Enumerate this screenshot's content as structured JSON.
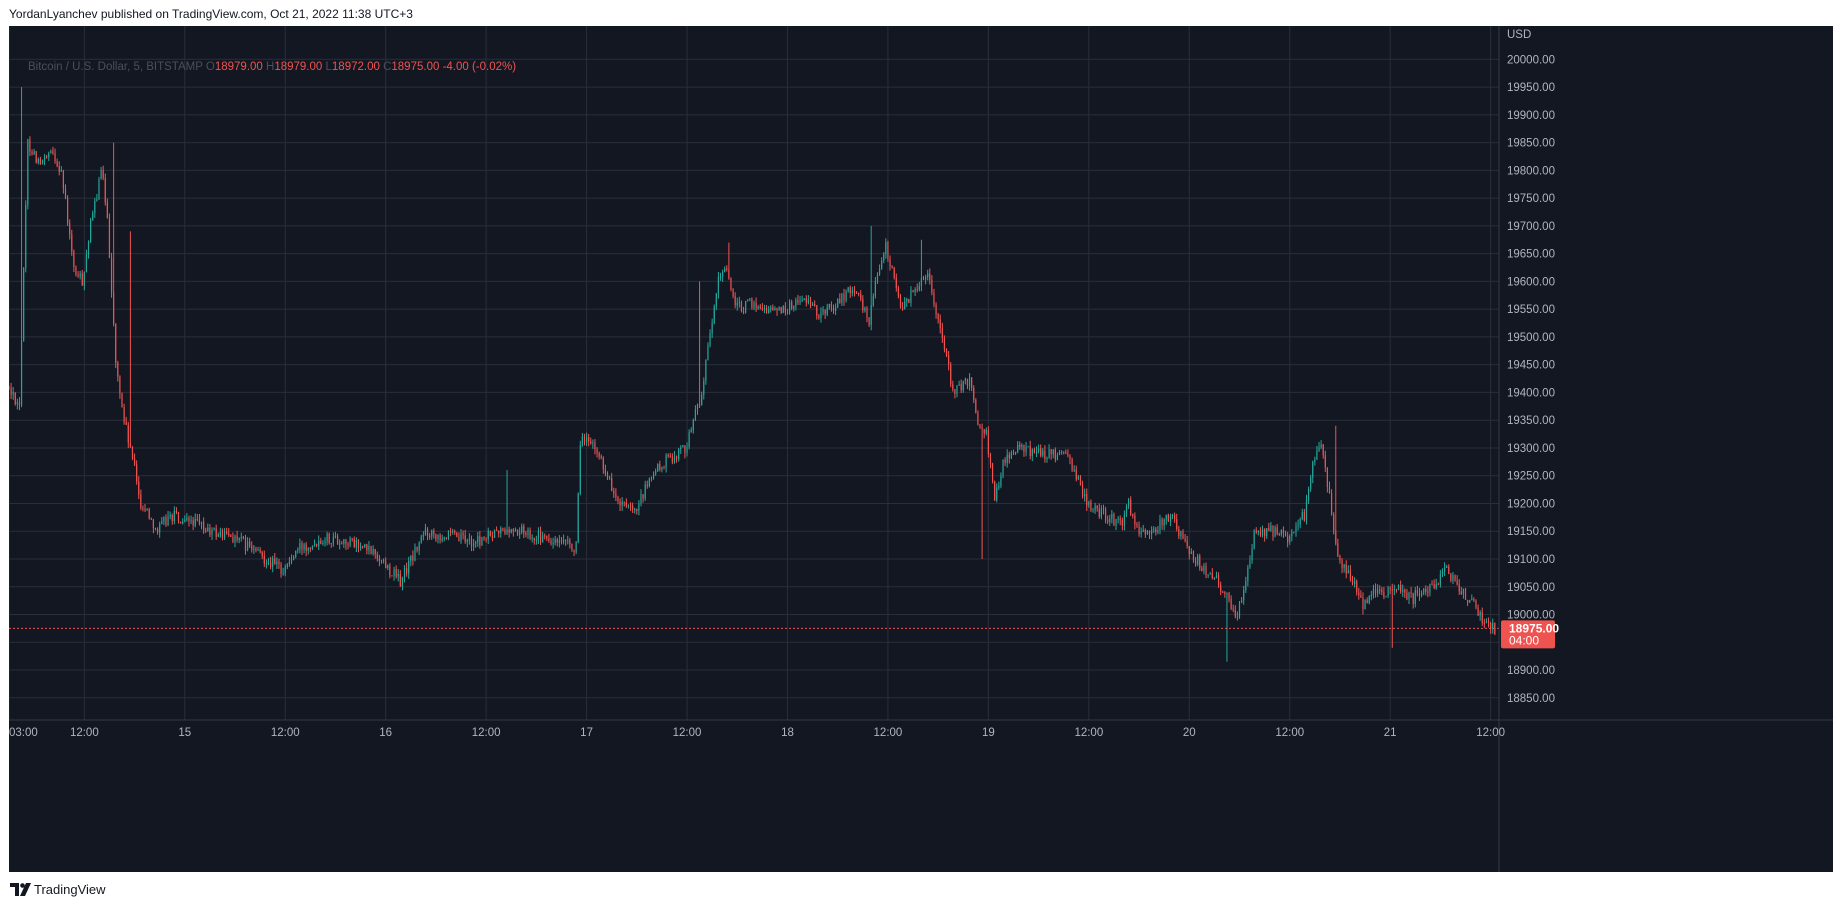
{
  "header": {
    "author": "YordanLyanchev",
    "published_text": "YordanLyanchev published on TradingView.com, Oct 21, 2022 11:38 UTC+3"
  },
  "legend": {
    "symbol": "Bitcoin / U.S. Dollar, 5, BITSTAMP",
    "o_label": "O",
    "o_value": "18979.00",
    "h_label": "H",
    "h_value": "18979.00",
    "l_label": "L",
    "l_value": "18972.00",
    "c_label": "C",
    "c_value": "18975.00",
    "change": "-4.00 (-0.02%)"
  },
  "footer": {
    "brand": "TradingView"
  },
  "colors": {
    "background": "#131722",
    "grid": "#2a2e39",
    "up": "#26a69a",
    "down": "#ef5350",
    "last_price": "#ef5350"
  },
  "chart_data": {
    "type": "candlestick",
    "symbol": "Bitcoin / U.S. Dollar",
    "interval": "5",
    "exchange": "BITSTAMP",
    "currency_label": "USD",
    "y_ticks": [
      18850,
      18900,
      18950,
      19000,
      19050,
      19100,
      19150,
      19200,
      19250,
      19300,
      19350,
      19400,
      19450,
      19500,
      19550,
      19600,
      19650,
      19700,
      19750,
      19800,
      19850,
      19900,
      19950,
      20000
    ],
    "y_tick_labels": [
      "18850.00",
      "18900.00",
      "18950.00",
      "19000.00",
      "19050.00",
      "19100.00",
      "19150.00",
      "19200.00",
      "19250.00",
      "19300.00",
      "19350.00",
      "19400.00",
      "19450.00",
      "19500.00",
      "19550.00",
      "19600.00",
      "19650.00",
      "19700.00",
      "19750.00",
      "19800.00",
      "19850.00",
      "19900.00",
      "19950.00",
      "20000.00"
    ],
    "ylim": [
      18810,
      20060
    ],
    "x_tick_labels": [
      "03:00",
      "12:00",
      "15",
      "12:00",
      "16",
      "12:00",
      "17",
      "12:00",
      "18",
      "12:00",
      "19",
      "12:00",
      "20",
      "12:00",
      "21",
      "12:00"
    ],
    "x_tick_hours": [
      3,
      12,
      24,
      36,
      48,
      60,
      72,
      84,
      96,
      108,
      120,
      132,
      144,
      156,
      168,
      180
    ],
    "x_range_hours": [
      3,
      181
    ],
    "grid": true,
    "last_price": 18975.0,
    "last_price_label": "18975.00",
    "countdown_label": "04:00",
    "path_hours": [
      2.5,
      4.5,
      5.5,
      7,
      8.5,
      9.5,
      11,
      12,
      13,
      14.3,
      15,
      16,
      17,
      18,
      19,
      20,
      21,
      22,
      23,
      24,
      25,
      27,
      30,
      33,
      36,
      38,
      41,
      44,
      47,
      50,
      53,
      56,
      59,
      62,
      65,
      68,
      71,
      71.5,
      72,
      74,
      76,
      78,
      80,
      82,
      84,
      86,
      88,
      89,
      90,
      92,
      94,
      96,
      98,
      100,
      102,
      104,
      106,
      107,
      108,
      110,
      112,
      113,
      114,
      115,
      116,
      118,
      119,
      120,
      121,
      122,
      124,
      127,
      130,
      132,
      134,
      136,
      137,
      138,
      140,
      142,
      144,
      146,
      147,
      148,
      150,
      152,
      154,
      156,
      158,
      159,
      160,
      161,
      162,
      164,
      165,
      166,
      167.5,
      169,
      171,
      173,
      175,
      177,
      178.5,
      179.5,
      180.5
    ],
    "path_prices": [
      19420,
      19380,
      19850,
      19810,
      19830,
      19800,
      19620,
      19600,
      19700,
      19800,
      19720,
      19450,
      19350,
      19280,
      19200,
      19180,
      19150,
      19170,
      19180,
      19160,
      19170,
      19150,
      19140,
      19110,
      19080,
      19120,
      19140,
      19130,
      19110,
      19060,
      19150,
      19140,
      19130,
      19150,
      19150,
      19130,
      19120,
      19300,
      19320,
      19280,
      19200,
      19180,
      19250,
      19280,
      19300,
      19400,
      19600,
      19630,
      19550,
      19560,
      19550,
      19550,
      19570,
      19540,
      19560,
      19590,
      19530,
      19620,
      19660,
      19550,
      19600,
      19620,
      19550,
      19480,
      19400,
      19420,
      19350,
      19330,
      19200,
      19280,
      19300,
      19290,
      19280,
      19200,
      19180,
      19160,
      19200,
      19150,
      19150,
      19180,
      19120,
      19080,
      19070,
      19050,
      19000,
      19140,
      19150,
      19140,
      19180,
      19270,
      19300,
      19220,
      19100,
      19050,
      19020,
      19040,
      19040,
      19050,
      19030,
      19050,
      19080,
      19040,
      19010,
      18990,
      18975
    ],
    "spikes": [
      {
        "hour": 4.6,
        "price": 19950
      },
      {
        "hour": 15.5,
        "price": 19850
      },
      {
        "hour": 62.5,
        "price": 19260
      },
      {
        "hour": 85.5,
        "price": 19600
      },
      {
        "hour": 106,
        "price": 19700
      },
      {
        "hour": 112,
        "price": 19675
      },
      {
        "hour": 119.2,
        "price": 19100
      },
      {
        "hour": 148.5,
        "price": 18915
      },
      {
        "hour": 161.5,
        "price": 19340
      },
      {
        "hour": 168.3,
        "price": 18940
      },
      {
        "hour": 89,
        "price": 19670
      },
      {
        "hour": 17.5,
        "price": 19690
      }
    ]
  }
}
